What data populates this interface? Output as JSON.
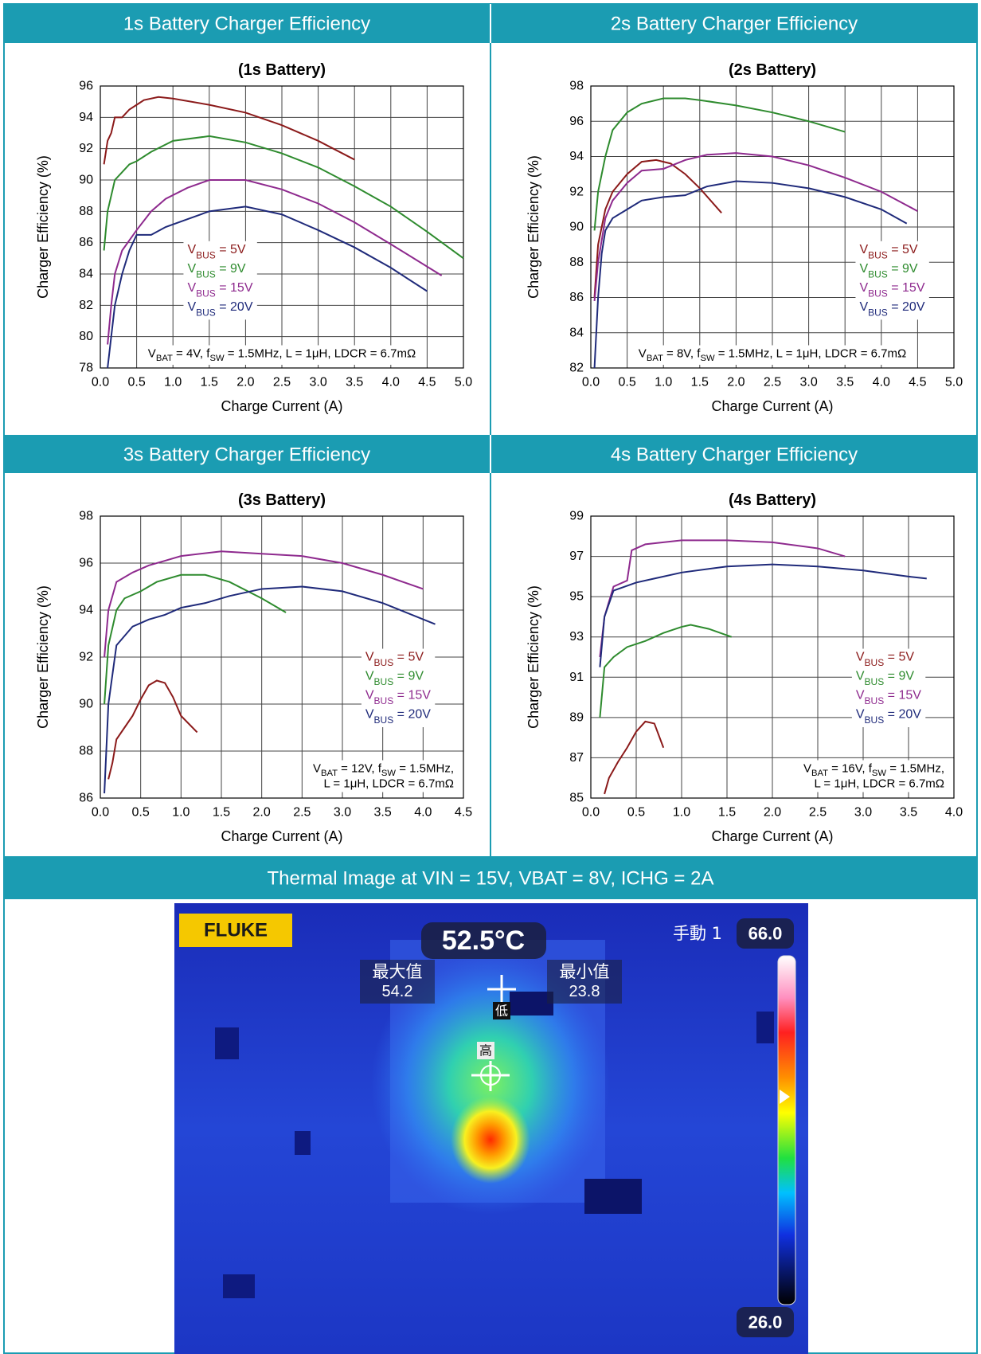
{
  "panel_titles": [
    "1s Battery Charger Efficiency",
    "2s Battery Charger Efficiency",
    "3s Battery Charger Efficiency",
    "4s Battery Charger Efficiency",
    "Thermal Image at VIN = 15V, VBAT = 8V, ICHG = 2A"
  ],
  "chart_data": [
    {
      "type": "line",
      "title": "(1s Battery)",
      "x_label": "Charge Current (A)",
      "y_label": "Charger Efficiency (%)",
      "xlim": [
        0,
        5
      ],
      "xticks": [
        {
          "value": 0,
          "label": "0.0"
        },
        0.5,
        {
          "value": 1,
          "label": "1.0"
        },
        1.5,
        {
          "value": 2,
          "label": "2.0"
        },
        2.5,
        {
          "value": 3,
          "label": "3.0"
        },
        3.5,
        {
          "value": 4,
          "label": "4.0"
        },
        4.5,
        {
          "value": 5,
          "label": "5.0"
        }
      ],
      "ylim": [
        78,
        96
      ],
      "yticks": [
        78,
        80,
        82,
        84,
        86,
        88,
        90,
        92,
        94,
        96
      ],
      "grid": true,
      "legend": "center-left",
      "annotation": [
        "VBAT = 4V, fSW = 1.5MHz, L = 1μH, LDCR = 6.7mΩ"
      ],
      "series": [
        {
          "name": "VBUS = 5V",
          "color": "#8b1a1a",
          "x": [
            0.05,
            0.1,
            0.15,
            0.2,
            0.3,
            0.4,
            0.5,
            0.6,
            0.8,
            1.0,
            1.5,
            2.0,
            2.5,
            3.0,
            3.5
          ],
          "values": [
            91,
            92.5,
            93,
            94,
            94,
            94.5,
            94.8,
            95.1,
            95.3,
            95.2,
            94.8,
            94.3,
            93.5,
            92.5,
            91.3
          ]
        },
        {
          "name": "VBUS = 9V",
          "color": "#2e8b2e",
          "x": [
            0.05,
            0.1,
            0.2,
            0.3,
            0.4,
            0.5,
            0.7,
            1.0,
            1.5,
            2.0,
            2.5,
            3.0,
            3.5,
            4.0,
            4.5,
            5.0
          ],
          "values": [
            85.5,
            88,
            90,
            90.5,
            91,
            91.2,
            91.8,
            92.5,
            92.8,
            92.4,
            91.7,
            90.8,
            89.6,
            88.3,
            86.7,
            85
          ]
        },
        {
          "name": "VBUS = 15V",
          "color": "#8e2a8e",
          "x": [
            0.1,
            0.15,
            0.2,
            0.3,
            0.5,
            0.7,
            0.9,
            1.2,
            1.5,
            2.0,
            2.5,
            3.0,
            3.5,
            4.0,
            4.7
          ],
          "values": [
            79.5,
            82,
            84,
            85.5,
            86.8,
            88,
            88.8,
            89.5,
            90,
            90,
            89.4,
            88.5,
            87.3,
            85.9,
            83.9
          ]
        },
        {
          "name": "VBUS = 20V",
          "color": "#1f2a7a",
          "x": [
            0.1,
            0.15,
            0.2,
            0.3,
            0.4,
            0.5,
            0.7,
            0.9,
            1.2,
            1.5,
            2.0,
            2.5,
            3.0,
            3.5,
            4.0,
            4.5
          ],
          "values": [
            78,
            80,
            82,
            84,
            85.5,
            86.5,
            86.5,
            87,
            87.5,
            88,
            88.3,
            87.8,
            86.8,
            85.7,
            84.4,
            82.9
          ]
        }
      ]
    },
    {
      "type": "line",
      "title": "(2s Battery)",
      "x_label": "Charge Current (A)",
      "y_label": "Charger Efficiency (%)",
      "xlim": [
        0,
        5
      ],
      "xticks": [
        {
          "value": 0,
          "label": "0.0"
        },
        0.5,
        {
          "value": 1,
          "label": "1.0"
        },
        1.5,
        {
          "value": 2,
          "label": "2.0"
        },
        2.5,
        {
          "value": 3,
          "label": "3.0"
        },
        3.5,
        {
          "value": 4,
          "label": "4.0"
        },
        4.5,
        {
          "value": 5,
          "label": "5.0"
        }
      ],
      "ylim": [
        82,
        98
      ],
      "yticks": [
        82,
        84,
        86,
        88,
        90,
        92,
        94,
        96,
        98
      ],
      "grid": true,
      "legend": "lower-right",
      "annotation": [
        "VBAT = 8V, fSW = 1.5MHz, L = 1μH, LDCR = 6.7mΩ"
      ],
      "series": [
        {
          "name": "VBUS = 5V",
          "color": "#8b1a1a",
          "x": [
            0.05,
            0.1,
            0.2,
            0.3,
            0.5,
            0.7,
            0.9,
            1.1,
            1.3,
            1.5,
            1.8
          ],
          "values": [
            86,
            89,
            91,
            92,
            93,
            93.7,
            93.8,
            93.6,
            93,
            92.2,
            90.8
          ]
        },
        {
          "name": "VBUS = 9V",
          "color": "#2e8b2e",
          "x": [
            0.05,
            0.1,
            0.2,
            0.3,
            0.5,
            0.7,
            1.0,
            1.3,
            1.5,
            2.0,
            2.5,
            3.0,
            3.5
          ],
          "values": [
            89.8,
            92,
            94,
            95.5,
            96.5,
            97,
            97.3,
            97.3,
            97.2,
            96.9,
            96.5,
            96,
            95.4
          ]
        },
        {
          "name": "VBUS = 15V",
          "color": "#8e2a8e",
          "x": [
            0.05,
            0.1,
            0.2,
            0.3,
            0.5,
            0.7,
            1.0,
            1.3,
            1.6,
            2.0,
            2.5,
            3.0,
            3.5,
            4.0,
            4.5
          ],
          "values": [
            85.8,
            88,
            90.5,
            91.5,
            92.5,
            93.2,
            93.3,
            93.8,
            94.1,
            94.2,
            94,
            93.5,
            92.8,
            92,
            90.9
          ]
        },
        {
          "name": "VBUS = 20V",
          "color": "#1f2a7a",
          "x": [
            0.05,
            0.1,
            0.15,
            0.2,
            0.3,
            0.5,
            0.7,
            1.0,
            1.3,
            1.6,
            2.0,
            2.5,
            3.0,
            3.5,
            4.0,
            4.35
          ],
          "values": [
            82,
            86,
            88.5,
            89.8,
            90.5,
            91,
            91.5,
            91.7,
            91.8,
            92.3,
            92.6,
            92.5,
            92.2,
            91.7,
            91,
            90.2
          ]
        }
      ]
    },
    {
      "type": "line",
      "title": "(3s Battery)",
      "x_label": "Charge Current (A)",
      "y_label": "Charger Efficiency (%)",
      "xlim": [
        0,
        4.5
      ],
      "xticks": [
        {
          "value": 0,
          "label": "0.0"
        },
        0.5,
        {
          "value": 1,
          "label": "1.0"
        },
        1.5,
        {
          "value": 2,
          "label": "2.0"
        },
        2.5,
        {
          "value": 3,
          "label": "3.0"
        },
        3.5,
        {
          "value": 4,
          "label": "4.0"
        },
        4.5
      ],
      "ylim": [
        86,
        98
      ],
      "yticks": [
        86,
        88,
        90,
        92,
        94,
        96,
        98
      ],
      "grid": true,
      "legend": "center-right",
      "annotation": [
        "VBAT = 12V, fSW = 1.5MHz,",
        "L = 1μH, LDCR = 6.7mΩ"
      ],
      "series": [
        {
          "name": "VBUS = 5V",
          "color": "#8b1a1a",
          "x": [
            0.1,
            0.15,
            0.2,
            0.3,
            0.4,
            0.5,
            0.6,
            0.7,
            0.8,
            0.9,
            1.0,
            1.2
          ],
          "values": [
            86.8,
            87.5,
            88.5,
            89,
            89.5,
            90.2,
            90.8,
            91,
            90.9,
            90.3,
            89.5,
            88.8
          ]
        },
        {
          "name": "VBUS = 9V",
          "color": "#2e8b2e",
          "x": [
            0.05,
            0.1,
            0.2,
            0.3,
            0.5,
            0.7,
            1.0,
            1.3,
            1.6,
            2.0,
            2.3
          ],
          "values": [
            90,
            92.5,
            94,
            94.5,
            94.8,
            95.2,
            95.5,
            95.5,
            95.2,
            94.5,
            93.9
          ]
        },
        {
          "name": "VBUS = 15V",
          "color": "#8e2a8e",
          "x": [
            0.05,
            0.1,
            0.2,
            0.4,
            0.6,
            0.8,
            1.0,
            1.5,
            2.0,
            2.5,
            3.0,
            3.5,
            4.0
          ],
          "values": [
            92,
            94,
            95.2,
            95.6,
            95.9,
            96.1,
            96.3,
            96.5,
            96.4,
            96.3,
            96,
            95.5,
            94.9
          ]
        },
        {
          "name": "VBUS = 20V",
          "color": "#1f2a7a",
          "x": [
            0.05,
            0.1,
            0.2,
            0.4,
            0.6,
            0.8,
            1.0,
            1.3,
            1.6,
            2.0,
            2.5,
            3.0,
            3.5,
            4.15
          ],
          "values": [
            86.2,
            90,
            92.5,
            93.3,
            93.6,
            93.8,
            94.1,
            94.3,
            94.6,
            94.9,
            95,
            94.8,
            94.3,
            93.4
          ]
        }
      ]
    },
    {
      "type": "line",
      "title": "(4s Battery)",
      "x_label": "Charge Current (A)",
      "y_label": "Charger Efficiency (%)",
      "xlim": [
        0,
        4
      ],
      "xticks": [
        {
          "value": 0,
          "label": "0.0"
        },
        0.5,
        {
          "value": 1,
          "label": "1.0"
        },
        1.5,
        {
          "value": 2,
          "label": "2.0"
        },
        2.5,
        {
          "value": 3,
          "label": "3.0"
        },
        3.5,
        {
          "value": 4,
          "label": "4.0"
        }
      ],
      "ylim": [
        85,
        99
      ],
      "yticks": [
        85,
        87,
        89,
        91,
        93,
        95,
        97,
        99
      ],
      "grid": true,
      "legend": "center-right",
      "annotation": [
        "VBAT = 16V, fSW = 1.5MHz,",
        "L = 1μH, LDCR = 6.7mΩ"
      ],
      "series": [
        {
          "name": "VBUS = 5V",
          "color": "#8b1a1a",
          "x": [
            0.15,
            0.2,
            0.3,
            0.4,
            0.5,
            0.6,
            0.7,
            0.8
          ],
          "values": [
            85.2,
            86,
            86.8,
            87.5,
            88.3,
            88.8,
            88.7,
            87.5
          ]
        },
        {
          "name": "VBUS = 9V",
          "color": "#2e8b2e",
          "x": [
            0.1,
            0.15,
            0.25,
            0.4,
            0.6,
            0.8,
            1.0,
            1.1,
            1.3,
            1.55
          ],
          "values": [
            89,
            91.5,
            92,
            92.5,
            92.8,
            93.2,
            93.5,
            93.6,
            93.4,
            93
          ]
        },
        {
          "name": "VBUS = 15V",
          "color": "#8e2a8e",
          "x": [
            0.1,
            0.15,
            0.25,
            0.4,
            0.45,
            0.6,
            1.0,
            1.5,
            2.0,
            2.5,
            2.8
          ],
          "values": [
            92,
            94,
            95.5,
            95.8,
            97.3,
            97.6,
            97.8,
            97.8,
            97.7,
            97.4,
            97
          ]
        },
        {
          "name": "VBUS = 20V",
          "color": "#1f2a7a",
          "x": [
            0.1,
            0.15,
            0.25,
            0.5,
            0.7,
            1.0,
            1.5,
            2.0,
            2.5,
            3.0,
            3.5,
            3.7
          ],
          "values": [
            91.5,
            94,
            95.3,
            95.7,
            95.9,
            96.2,
            96.5,
            96.6,
            96.5,
            96.3,
            96,
            95.9
          ]
        }
      ]
    }
  ],
  "thermal_image": {
    "brand": "FLUKE",
    "center_temp": "52.5°C",
    "max_label": "最大值",
    "max_value": "54.2",
    "min_label": "最小值",
    "min_value": "23.8",
    "mode": "手動 1",
    "scale_max": "66.0",
    "scale_min": "26.0",
    "low_marker": "低",
    "high_marker": "高"
  }
}
